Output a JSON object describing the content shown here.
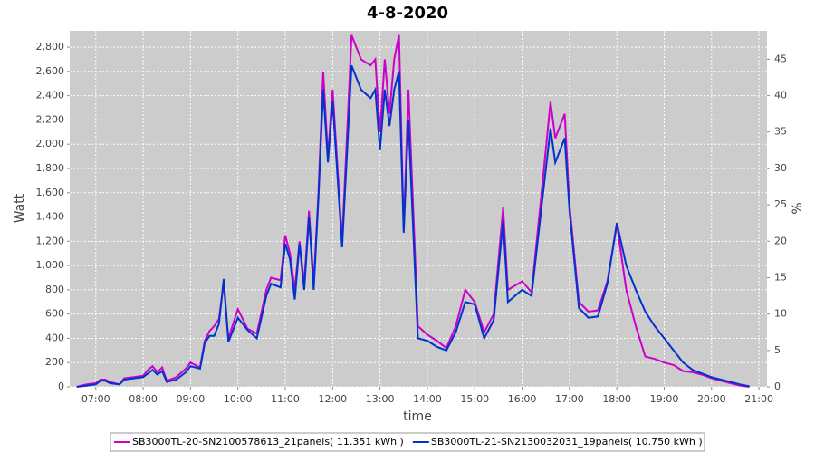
{
  "chart_data": {
    "type": "line",
    "title": "4-8-2020",
    "x_label": "time",
    "y_label": "Watt",
    "y2_label": "%",
    "x": [
      6.6,
      6.8,
      7.0,
      7.1,
      7.2,
      7.3,
      7.5,
      7.6,
      7.8,
      8.0,
      8.1,
      8.2,
      8.3,
      8.4,
      8.5,
      8.7,
      8.9,
      9.0,
      9.2,
      9.3,
      9.4,
      9.5,
      9.6,
      9.7,
      9.8,
      10.0,
      10.2,
      10.4,
      10.6,
      10.7,
      10.9,
      11.0,
      11.1,
      11.2,
      11.3,
      11.4,
      11.5,
      11.6,
      11.7,
      11.8,
      11.9,
      12.0,
      12.2,
      12.4,
      12.6,
      12.8,
      12.9,
      13.0,
      13.1,
      13.2,
      13.3,
      13.4,
      13.5,
      13.6,
      13.8,
      14.0,
      14.2,
      14.4,
      14.6,
      14.8,
      15.0,
      15.2,
      15.4,
      15.6,
      15.7,
      16.0,
      16.2,
      16.4,
      16.6,
      16.7,
      16.9,
      17.0,
      17.2,
      17.4,
      17.6,
      17.8,
      18.0,
      18.2,
      18.4,
      18.6,
      18.8,
      19.0,
      19.2,
      19.4,
      19.6,
      19.8,
      20.0,
      20.2,
      20.4,
      20.6,
      20.8
    ],
    "series": [
      {
        "name": "SB3000TL-20-SN2100578613_21panels( 11.351 kWh )",
        "color": "#cc00cc",
        "values": [
          0,
          20,
          30,
          60,
          60,
          40,
          20,
          70,
          80,
          90,
          140,
          170,
          120,
          160,
          50,
          80,
          150,
          200,
          160,
          380,
          460,
          500,
          560,
          850,
          400,
          640,
          480,
          440,
          800,
          900,
          880,
          1250,
          1100,
          800,
          1200,
          850,
          1450,
          850,
          1600,
          2600,
          1900,
          2450,
          1200,
          2900,
          2700,
          2650,
          2700,
          2100,
          2700,
          2250,
          2700,
          2900,
          1300,
          2450,
          500,
          430,
          380,
          320,
          500,
          800,
          700,
          450,
          600,
          1480,
          800,
          870,
          780,
          1560,
          2350,
          2050,
          2250,
          1500,
          700,
          620,
          630,
          870,
          1340,
          800,
          500,
          250,
          230,
          200,
          180,
          130,
          120,
          100,
          70,
          50,
          30,
          10,
          0
        ]
      },
      {
        "name": "SB3000TL-21-SN2130032031_19panels( 10.750 kWh )",
        "color": "#0033cc",
        "values": [
          0,
          10,
          20,
          50,
          50,
          30,
          20,
          60,
          70,
          80,
          110,
          140,
          100,
          130,
          40,
          60,
          120,
          170,
          150,
          360,
          420,
          420,
          520,
          890,
          370,
          570,
          470,
          400,
          750,
          850,
          820,
          1180,
          1050,
          720,
          1180,
          800,
          1400,
          800,
          1550,
          2450,
          1850,
          2350,
          1150,
          2650,
          2450,
          2380,
          2450,
          1950,
          2450,
          2150,
          2450,
          2600,
          1270,
          2200,
          400,
          380,
          330,
          300,
          450,
          700,
          680,
          400,
          550,
          1370,
          700,
          800,
          750,
          1450,
          2130,
          1850,
          2050,
          1450,
          650,
          570,
          580,
          850,
          1350,
          1000,
          800,
          620,
          500,
          400,
          300,
          200,
          140,
          110,
          80,
          60,
          40,
          20,
          5
        ]
      }
    ],
    "xlim": [
      6.45,
      21.17
    ],
    "xticks": [
      {
        "value": 7,
        "label": "07:00"
      },
      {
        "value": 8,
        "label": "08:00"
      },
      {
        "value": 9,
        "label": "09:00"
      },
      {
        "value": 10,
        "label": "10:00"
      },
      {
        "value": 11,
        "label": "11:00"
      },
      {
        "value": 12,
        "label": "12:00"
      },
      {
        "value": 13,
        "label": "13:00"
      },
      {
        "value": 14,
        "label": "14:00"
      },
      {
        "value": 15,
        "label": "15:00"
      },
      {
        "value": 16,
        "label": "16:00"
      },
      {
        "value": 17,
        "label": "17:00"
      },
      {
        "value": 18,
        "label": "18:00"
      },
      {
        "value": 19,
        "label": "19:00"
      },
      {
        "value": 20,
        "label": "20:00"
      },
      {
        "value": 21,
        "label": "21:00"
      }
    ],
    "ylim": [
      0,
      2935
    ],
    "yticks": [
      0,
      200,
      400,
      600,
      800,
      {
        "value": 1000,
        "label": "1,000"
      },
      {
        "value": 1200,
        "label": "1,200"
      },
      {
        "value": 1400,
        "label": "1,400"
      },
      {
        "value": 1600,
        "label": "1,600"
      },
      {
        "value": 1800,
        "label": "1,800"
      },
      {
        "value": 2000,
        "label": "2,000"
      },
      {
        "value": 2200,
        "label": "2,200"
      },
      {
        "value": 2400,
        "label": "2,400"
      },
      {
        "value": 2600,
        "label": "2,600"
      },
      {
        "value": 2800,
        "label": "2,800"
      }
    ],
    "y2lim": [
      0,
      48.9
    ],
    "y2ticks": [
      0,
      5,
      10,
      15,
      20,
      25,
      30,
      35,
      40,
      45
    ],
    "grid": true,
    "legend": "bottom"
  }
}
